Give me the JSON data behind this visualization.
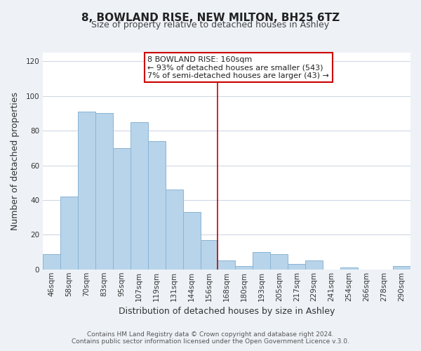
{
  "title": "8, BOWLAND RISE, NEW MILTON, BH25 6TZ",
  "subtitle": "Size of property relative to detached houses in Ashley",
  "xlabel": "Distribution of detached houses by size in Ashley",
  "ylabel": "Number of detached properties",
  "categories": [
    "46sqm",
    "58sqm",
    "70sqm",
    "83sqm",
    "95sqm",
    "107sqm",
    "119sqm",
    "131sqm",
    "144sqm",
    "156sqm",
    "168sqm",
    "180sqm",
    "193sqm",
    "205sqm",
    "217sqm",
    "229sqm",
    "241sqm",
    "254sqm",
    "266sqm",
    "278sqm",
    "290sqm"
  ],
  "values": [
    9,
    42,
    91,
    90,
    70,
    85,
    74,
    46,
    33,
    17,
    5,
    2,
    10,
    9,
    3,
    5,
    0,
    1,
    0,
    0,
    2
  ],
  "bar_color": "#b8d4ea",
  "bar_edge_color": "#8ab4d4",
  "ylim": [
    0,
    125
  ],
  "yticks": [
    0,
    20,
    40,
    60,
    80,
    100,
    120
  ],
  "annotation_title": "8 BOWLAND RISE: 160sqm",
  "annotation_line1": "← 93% of detached houses are smaller (543)",
  "annotation_line2": "7% of semi-detached houses are larger (43) →",
  "footer1": "Contains HM Land Registry data © Crown copyright and database right 2024.",
  "footer2": "Contains public sector information licensed under the Open Government Licence v.3.0.",
  "background_color": "#eef2f7",
  "plot_background_color": "#ffffff",
  "grid_color": "#d0d8e4",
  "red_line_color": "#cc0000",
  "annotation_box_facecolor": "#ffffff",
  "annotation_box_edgecolor": "#cc0000",
  "title_fontsize": 11,
  "subtitle_fontsize": 9,
  "xlabel_fontsize": 9,
  "ylabel_fontsize": 9,
  "tick_fontsize": 7.5,
  "footer_fontsize": 6.5,
  "annotation_fontsize": 8
}
